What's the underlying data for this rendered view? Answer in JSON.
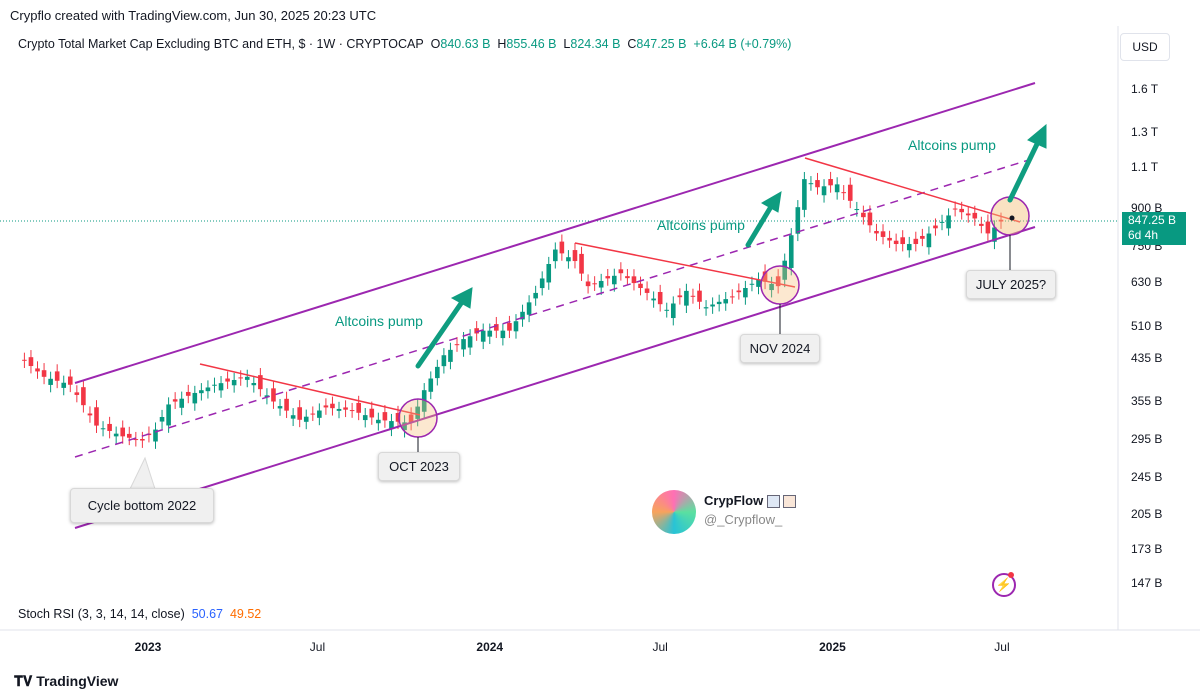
{
  "credit": "Crypflo created with TradingView.com, Jun 30, 2025 20:23 UTC",
  "legend": {
    "symbol": "Crypto Total Market Cap Excluding BTC and ETH, $ · 1W · CRYPTOCAP",
    "o_label": "O",
    "o": "840.63 B",
    "h_label": "H",
    "h": "855.46 B",
    "l_label": "L",
    "l": "824.34 B",
    "c_label": "C",
    "c": "847.25 B",
    "change": "+6.64 B (+0.79%)"
  },
  "currency_button": "USD",
  "price_badge": {
    "price": "847.25 B",
    "countdown": "6d 4h"
  },
  "indicator": {
    "name": "Stoch RSI (3, 3, 14, 14, close)",
    "k": "50.67",
    "d": "49.52",
    "k_color": "#2962ff",
    "d_color": "#ff6d00"
  },
  "annotations": {
    "pump1": "Altcoins pump",
    "pump2": "Altcoins pump",
    "pump3": "Altcoins pump",
    "cycle_bottom": "Cycle bottom 2022",
    "oct": "OCT 2023",
    "nov": "NOV 2024",
    "july": "JULY 2025?"
  },
  "author": {
    "name": "CrypFlow",
    "handle": "@_Crypflow_"
  },
  "footer": "TradingView",
  "colors": {
    "up": "#089981",
    "down": "#f23645",
    "channel": "#9c27b0",
    "trendline": "#f23645",
    "arrow": "#0f9d80"
  },
  "chart_data": {
    "type": "candlestick",
    "title": "Crypto Total Market Cap Excluding BTC and ETH",
    "interval": "1W",
    "y_scale": "log",
    "y_unit": "USD",
    "ylim": [
      140,
      1750
    ],
    "y_ticks": [
      "1.6 T",
      "1.3 T",
      "1.1 T",
      "900 B",
      "750 B",
      "630 B",
      "510 B",
      "435 B",
      "355 B",
      "295 B",
      "245 B",
      "205 B",
      "173 B",
      "147 B"
    ],
    "y_tick_values": [
      1600,
      1300,
      1100,
      900,
      750,
      630,
      510,
      435,
      355,
      295,
      245,
      205,
      173,
      147
    ],
    "x_ticks": [
      {
        "label": "2023",
        "date": "2023-01-01",
        "bold": true
      },
      {
        "label": "Jul",
        "date": "2023-07-01",
        "bold": false
      },
      {
        "label": "2024",
        "date": "2024-01-01",
        "bold": true
      },
      {
        "label": "Jul",
        "date": "2024-07-01",
        "bold": false
      },
      {
        "label": "2025",
        "date": "2025-01-01",
        "bold": true
      },
      {
        "label": "Jul",
        "date": "2025-07-01",
        "bold": false
      }
    ],
    "close_values_billions": [
      [
        "2022-08-15",
        444
      ],
      [
        "2022-09-12",
        400
      ],
      [
        "2022-10-10",
        385
      ],
      [
        "2022-11-07",
        316
      ],
      [
        "2022-12-05",
        300
      ],
      [
        "2022-12-26",
        294
      ],
      [
        "2023-01-09",
        310
      ],
      [
        "2023-01-23",
        350
      ],
      [
        "2023-02-20",
        370
      ],
      [
        "2023-03-13",
        385
      ],
      [
        "2023-04-17",
        400
      ],
      [
        "2023-05-15",
        355
      ],
      [
        "2023-06-12",
        325
      ],
      [
        "2023-07-10",
        345
      ],
      [
        "2023-08-07",
        340
      ],
      [
        "2023-09-04",
        325
      ],
      [
        "2023-10-09",
        320
      ],
      [
        "2023-10-23",
        375
      ],
      [
        "2023-11-13",
        444
      ],
      [
        "2023-12-04",
        480
      ],
      [
        "2023-12-25",
        500
      ],
      [
        "2024-01-22",
        500
      ],
      [
        "2024-02-19",
        600
      ],
      [
        "2024-03-11",
        740
      ],
      [
        "2024-04-01",
        700
      ],
      [
        "2024-04-15",
        620
      ],
      [
        "2024-05-20",
        660
      ],
      [
        "2024-06-17",
        600
      ],
      [
        "2024-07-08",
        553
      ],
      [
        "2024-07-29",
        606
      ],
      [
        "2024-08-19",
        560
      ],
      [
        "2024-09-16",
        590
      ],
      [
        "2024-10-14",
        640
      ],
      [
        "2024-11-04",
        620
      ],
      [
        "2024-11-18",
        793
      ],
      [
        "2024-12-02",
        1040
      ],
      [
        "2024-12-16",
        1000
      ],
      [
        "2025-01-06",
        1014
      ],
      [
        "2025-01-27",
        900
      ],
      [
        "2025-02-17",
        800
      ],
      [
        "2025-03-10",
        760
      ],
      [
        "2025-03-31",
        760
      ],
      [
        "2025-04-21",
        820
      ],
      [
        "2025-05-12",
        900
      ],
      [
        "2025-06-02",
        860
      ],
      [
        "2025-06-16",
        800
      ],
      [
        "2025-06-30",
        847.25
      ]
    ],
    "last_price": 847.25,
    "grid": false
  }
}
